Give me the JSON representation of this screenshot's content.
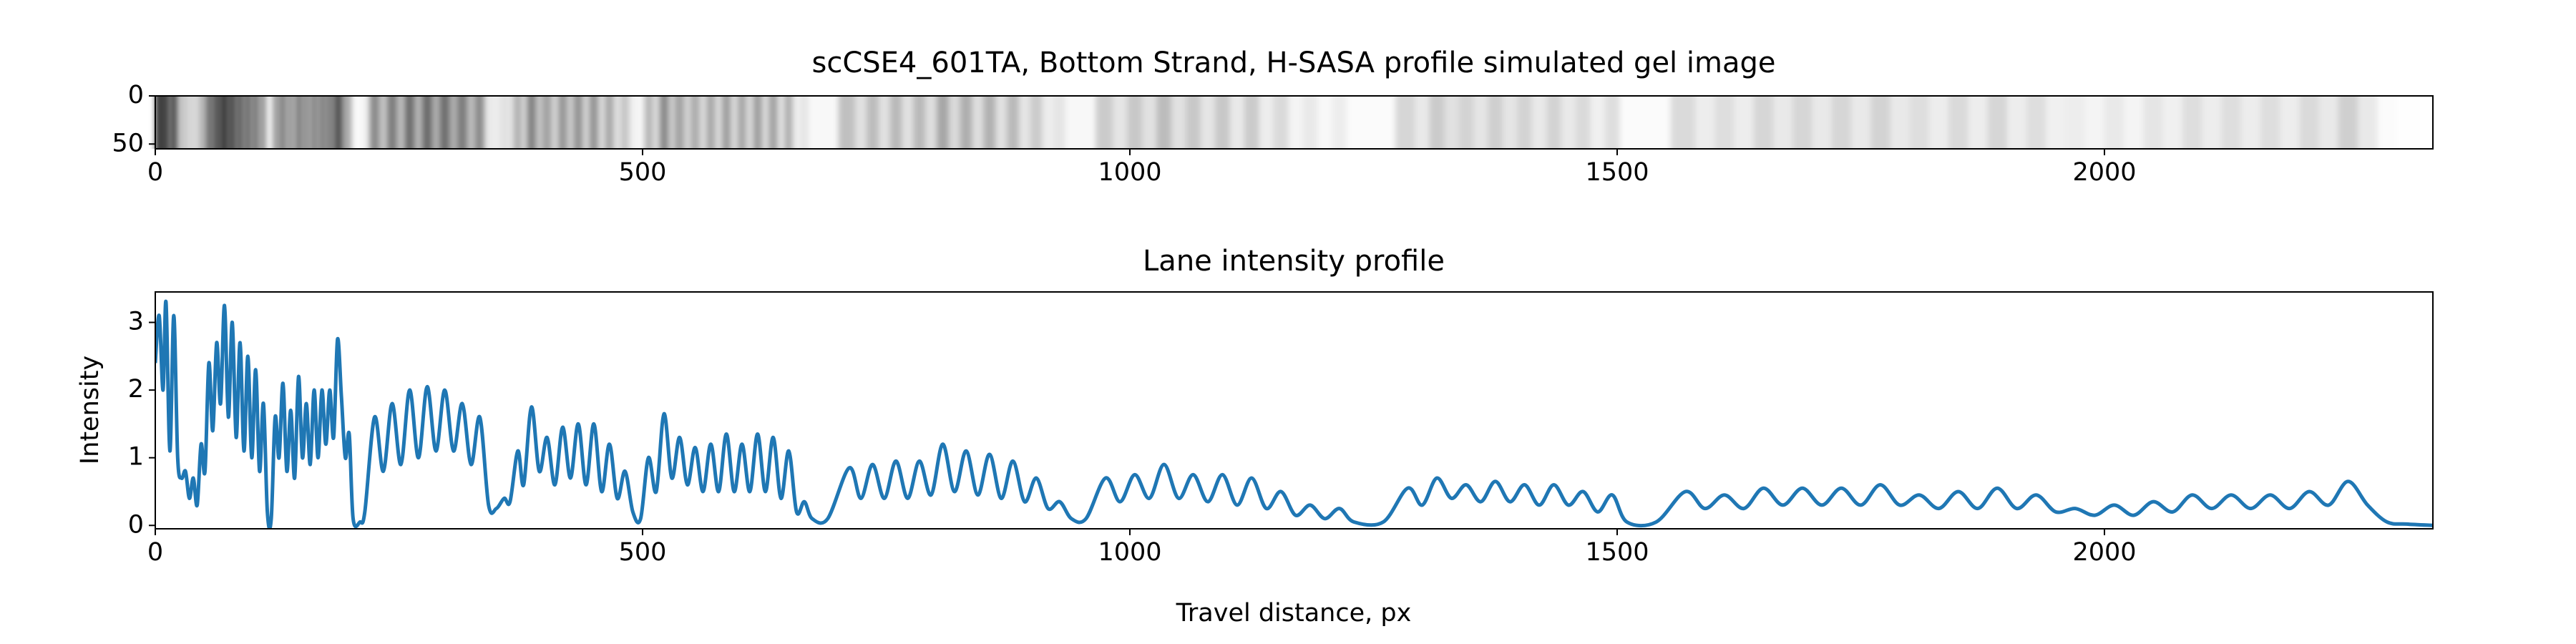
{
  "chart_data": [
    {
      "type": "gel",
      "title": "scCSE4_601TA, Bottom Strand, H-SASA profile simulated gel image",
      "xlim": [
        0,
        2337
      ],
      "xticks": [
        0,
        500,
        1000,
        1500,
        2000
      ],
      "ylim": [
        0,
        55
      ],
      "yticks": [
        0,
        50
      ]
    },
    {
      "type": "line",
      "title": "Lane intensity profile",
      "xlabel": "Travel distance, px",
      "ylabel": "Intensity",
      "xlim": [
        0,
        2337
      ],
      "xticks": [
        0,
        500,
        1000,
        1500,
        2000
      ],
      "ylim": [
        -0.05,
        3.45
      ],
      "yticks": [
        0,
        1,
        2,
        3
      ],
      "grid": false,
      "series": [
        {
          "name": "Intensity",
          "color": "#1f77b4",
          "x": [
            0,
            4,
            8,
            11,
            15,
            19,
            23,
            27,
            31,
            35,
            39,
            43,
            47,
            51,
            55,
            59,
            63,
            67,
            71,
            75,
            79,
            83,
            87,
            91,
            95,
            99,
            103,
            107,
            111,
            115,
            119,
            123,
            127,
            131,
            135,
            139,
            143,
            147,
            151,
            155,
            159,
            163,
            167,
            171,
            175,
            179,
            183,
            187,
            191,
            195,
            199,
            203,
            210,
            215,
            225,
            234,
            243,
            252,
            261,
            270,
            279,
            288,
            297,
            306,
            315,
            324,
            333,
            342,
            350,
            358,
            364,
            372,
            378,
            386,
            394,
            402,
            410,
            418,
            426,
            434,
            442,
            450,
            458,
            466,
            474,
            482,
            490,
            498,
            506,
            514,
            522,
            530,
            538,
            546,
            554,
            562,
            570,
            578,
            586,
            594,
            602,
            610,
            618,
            626,
            634,
            642,
            650,
            658,
            666,
            674,
            690,
            712,
            724,
            736,
            748,
            760,
            772,
            784,
            796,
            808,
            820,
            832,
            844,
            856,
            868,
            880,
            892,
            904,
            916,
            928,
            940,
            955,
            975,
            990,
            1005,
            1020,
            1035,
            1050,
            1065,
            1080,
            1095,
            1110,
            1125,
            1140,
            1155,
            1170,
            1185,
            1200,
            1215,
            1230,
            1260,
            1285,
            1300,
            1315,
            1330,
            1345,
            1360,
            1375,
            1390,
            1405,
            1420,
            1435,
            1450,
            1465,
            1480,
            1495,
            1510,
            1540,
            1570,
            1590,
            1610,
            1630,
            1650,
            1670,
            1690,
            1710,
            1730,
            1750,
            1770,
            1790,
            1810,
            1830,
            1850,
            1870,
            1890,
            1910,
            1930,
            1950,
            1970,
            1990,
            2010,
            2030,
            2050,
            2070,
            2090,
            2110,
            2130,
            2150,
            2170,
            2190,
            2210,
            2230,
            2250,
            2270,
            2290,
            2310,
            2337
          ],
          "values": [
            2.4,
            3.1,
            2.0,
            3.3,
            1.1,
            3.1,
            1.0,
            0.7,
            0.8,
            0.4,
            0.7,
            0.3,
            1.2,
            0.8,
            2.4,
            1.4,
            2.7,
            1.8,
            3.25,
            1.6,
            3.0,
            1.3,
            2.7,
            1.1,
            2.5,
            1.0,
            2.3,
            0.8,
            1.8,
            0.2,
            0.1,
            1.6,
            1.0,
            2.1,
            0.8,
            1.7,
            0.7,
            2.2,
            1.0,
            1.8,
            0.9,
            2.0,
            1.0,
            2.0,
            1.2,
            2.0,
            1.3,
            2.75,
            1.9,
            1.0,
            1.35,
            0.1,
            0.05,
            0.2,
            1.6,
            0.8,
            1.8,
            0.9,
            2.0,
            1.0,
            2.05,
            1.1,
            2.0,
            1.1,
            1.8,
            0.9,
            1.6,
            0.3,
            0.25,
            0.4,
            0.35,
            1.1,
            0.6,
            1.75,
            0.8,
            1.3,
            0.6,
            1.45,
            0.7,
            1.5,
            0.6,
            1.5,
            0.5,
            1.2,
            0.4,
            0.8,
            0.2,
            0.1,
            1.0,
            0.5,
            1.65,
            0.7,
            1.3,
            0.6,
            1.15,
            0.5,
            1.2,
            0.5,
            1.35,
            0.5,
            1.2,
            0.5,
            1.35,
            0.5,
            1.3,
            0.4,
            1.1,
            0.2,
            0.35,
            0.1,
            0.1,
            0.85,
            0.4,
            0.9,
            0.4,
            0.95,
            0.4,
            0.95,
            0.45,
            1.2,
            0.5,
            1.1,
            0.45,
            1.05,
            0.4,
            0.95,
            0.35,
            0.7,
            0.25,
            0.35,
            0.1,
            0.1,
            0.7,
            0.35,
            0.75,
            0.4,
            0.9,
            0.4,
            0.75,
            0.35,
            0.75,
            0.3,
            0.7,
            0.25,
            0.5,
            0.15,
            0.3,
            0.1,
            0.25,
            0.05,
            0.05,
            0.55,
            0.3,
            0.7,
            0.4,
            0.6,
            0.35,
            0.65,
            0.35,
            0.6,
            0.3,
            0.6,
            0.3,
            0.5,
            0.2,
            0.45,
            0.05,
            0.05,
            0.5,
            0.25,
            0.45,
            0.25,
            0.55,
            0.3,
            0.55,
            0.3,
            0.55,
            0.3,
            0.6,
            0.3,
            0.45,
            0.25,
            0.5,
            0.25,
            0.55,
            0.25,
            0.45,
            0.2,
            0.25,
            0.15,
            0.3,
            0.15,
            0.35,
            0.2,
            0.45,
            0.25,
            0.45,
            0.25,
            0.45,
            0.25,
            0.5,
            0.3,
            0.65,
            0.3,
            0.05,
            0.02,
            0
          ]
        }
      ]
    }
  ]
}
